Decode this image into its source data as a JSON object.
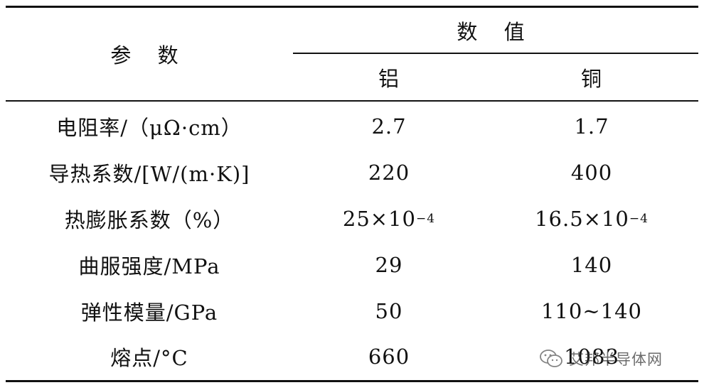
{
  "table": {
    "header": {
      "param": "参 数",
      "value": "数 值",
      "col_al": "铝",
      "col_cu": "铜"
    },
    "rows": [
      {
        "param": "电阻率/（μΩ·cm）",
        "al": "2.7",
        "cu": "1.7"
      },
      {
        "param": "导热系数/[W/(m·K)]",
        "al": "220",
        "cu": "400"
      },
      {
        "param": "热膨胀系数（%）",
        "al_base": "25×10",
        "al_exp": "−4",
        "cu_base": "16.5×10",
        "cu_exp": "−4"
      },
      {
        "param": "曲服强度/MPa",
        "al": "29",
        "cu": "140"
      },
      {
        "param": "弹性模量/GPa",
        "al": "50",
        "cu": "110~140"
      },
      {
        "param": "熔点/°C",
        "al": "660",
        "cu": "1083"
      }
    ]
  },
  "watermark": {
    "icon": "wechat-icon",
    "text": "艾邦半导体网"
  }
}
